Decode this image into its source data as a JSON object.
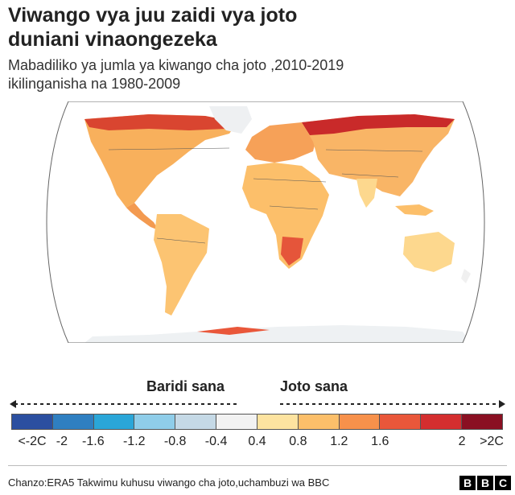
{
  "header": {
    "title_line1": "Viwango vya juu zaidi vya joto",
    "title_line2": "duniani vinaongezeka",
    "subtitle_line1": "Mabadiliko  ya jumla ya kiwango cha joto ,2010-2019",
    "subtitle_line2": "ikilinganisha na 1980-2009"
  },
  "map": {
    "projection": "robinson",
    "ocean_color": "#ffffff",
    "outline_color": "#555555"
  },
  "legend": {
    "cold_label": "Baridi sana",
    "hot_label": "Joto sana",
    "colors": [
      "#2b4fa0",
      "#2f7fc1",
      "#2aa6d8",
      "#8fcde9",
      "#c5d9e6",
      "#f2f2f2",
      "#fde3a0",
      "#fcbf6a",
      "#f7914b",
      "#e9573a",
      "#d42e2f",
      "#8a1022"
    ],
    "ticks": [
      "<-2C",
      "-2",
      "-1.6",
      "-1.2",
      "-0.8",
      "-0.4",
      "0.4",
      "0.8",
      "1.2",
      "1.6",
      "2",
      ">2C"
    ]
  },
  "footer": {
    "source": "Chanzo:ERA5  Takwimu kuhusu viwango cha joto,uchambuzi wa BBC",
    "logo_letters": [
      "B",
      "B",
      "C"
    ]
  }
}
